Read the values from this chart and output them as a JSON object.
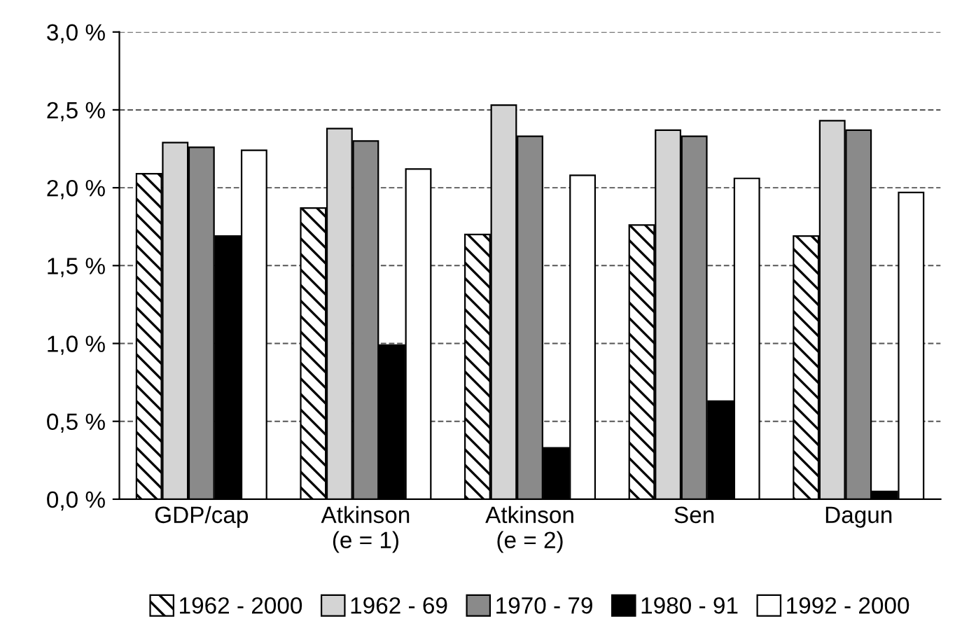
{
  "chart_data": {
    "type": "bar",
    "categories": [
      "GDP/cap",
      "Atkinson\n(e = 1)",
      "Atkinson\n(e = 2)",
      "Sen",
      "Dagun"
    ],
    "series": [
      {
        "name": "1962 - 2000",
        "color": "#000000",
        "values": [
          2.09,
          1.87,
          1.7,
          1.76,
          1.69
        ]
      },
      {
        "name": "1962 - 69",
        "color": "#d4d4d4",
        "values": [
          2.29,
          2.38,
          2.53,
          2.37,
          2.43
        ]
      },
      {
        "name": "1970 - 79",
        "color": "#8a8a8a",
        "values": [
          2.26,
          2.3,
          2.33,
          2.33,
          2.37
        ]
      },
      {
        "name": "1980 - 91",
        "color": "#000000",
        "values": [
          1.69,
          0.99,
          0.33,
          0.63,
          0.05
        ]
      },
      {
        "name": "1992 - 2000",
        "color": "#ffffff",
        "values": [
          2.24,
          2.12,
          2.08,
          2.06,
          1.97
        ]
      }
    ],
    "ylim": [
      0,
      3.0
    ],
    "yticks": [
      {
        "value": 0,
        "label": "0,0 %"
      },
      {
        "value": 0.5,
        "label": "0,5 %"
      },
      {
        "value": 1.0,
        "label": "1,0 %"
      },
      {
        "value": 1.5,
        "label": "1,5 %"
      },
      {
        "value": 2.0,
        "label": "2,0 %"
      },
      {
        "value": 2.5,
        "label": "2,5 %"
      },
      {
        "value": 3.0,
        "label": "3,0 %"
      }
    ],
    "grid": "y",
    "legend": "bottom"
  }
}
